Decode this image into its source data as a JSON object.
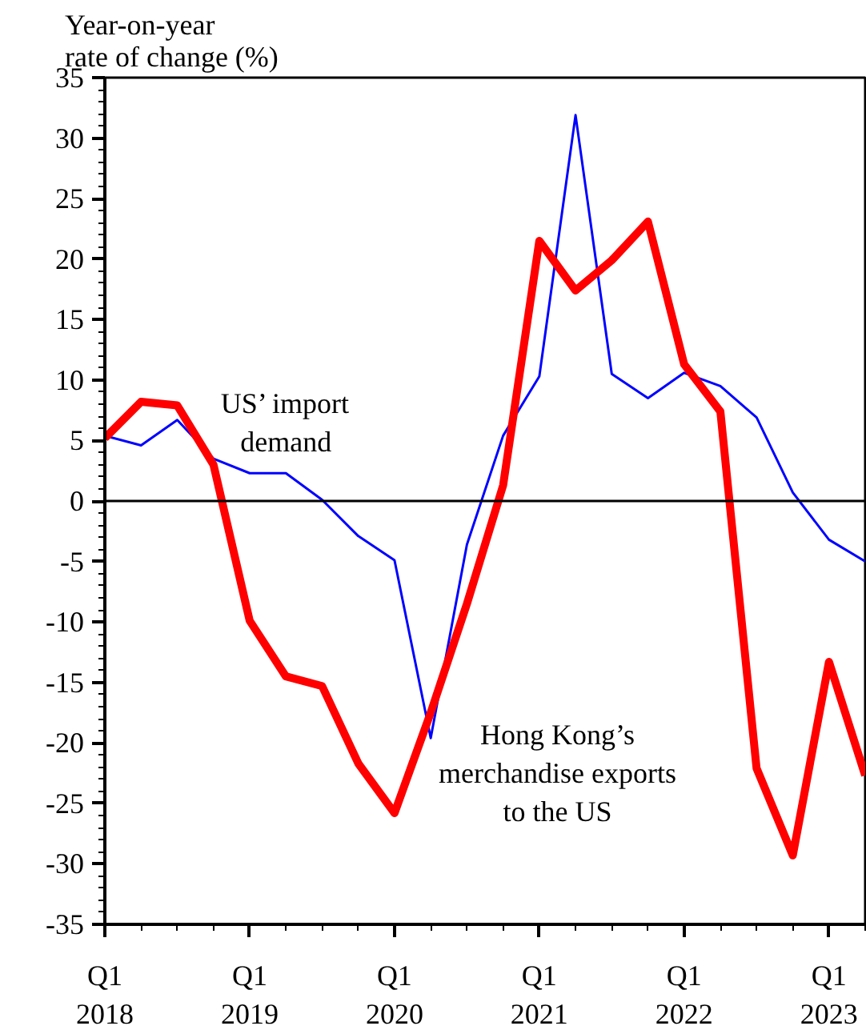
{
  "chart_data": {
    "type": "line",
    "ylabel": "Year-on-year\nrate of change (%)",
    "categories": [
      "Q1\n2018",
      null,
      null,
      null,
      "Q1\n2019",
      null,
      null,
      null,
      "Q1\n2020",
      null,
      null,
      null,
      "Q1\n2021",
      null,
      null,
      null,
      "Q1\n2022",
      null,
      null,
      null,
      "Q1\n2023",
      null
    ],
    "ylim": [
      -35,
      35
    ],
    "yticks": [
      -35,
      -30,
      -25,
      -20,
      -15,
      -10,
      -5,
      0,
      5,
      10,
      15,
      20,
      25,
      30,
      35
    ],
    "series": [
      {
        "name": "US’ import demand",
        "color": "#0000ff",
        "values": [
          5.4,
          4.6,
          6.7,
          3.5,
          2.3,
          2.3,
          0.1,
          -2.9,
          -4.9,
          -19.6,
          -3.6,
          5.4,
          10.3,
          31.9,
          10.5,
          8.5,
          10.6,
          9.5,
          6.9,
          0.7,
          -3.2,
          -5.0
        ]
      },
      {
        "name": "Hong Kong’s merchandise exports to the US",
        "color": "#ff0000",
        "values": [
          5.2,
          8.2,
          7.9,
          3.0,
          -9.9,
          -14.5,
          -15.3,
          -21.7,
          -25.8,
          -17.5,
          -8.5,
          1.3,
          21.5,
          17.4,
          19.9,
          23.1,
          11.3,
          7.4,
          -22.1,
          -29.3,
          -13.3,
          -22.7
        ]
      }
    ],
    "ref_lines": [
      {
        "axis": "y",
        "value": 0,
        "label": null,
        "color": "#000000"
      }
    ],
    "grid": false,
    "legend": false,
    "marker": "none",
    "line_style": "solid"
  }
}
